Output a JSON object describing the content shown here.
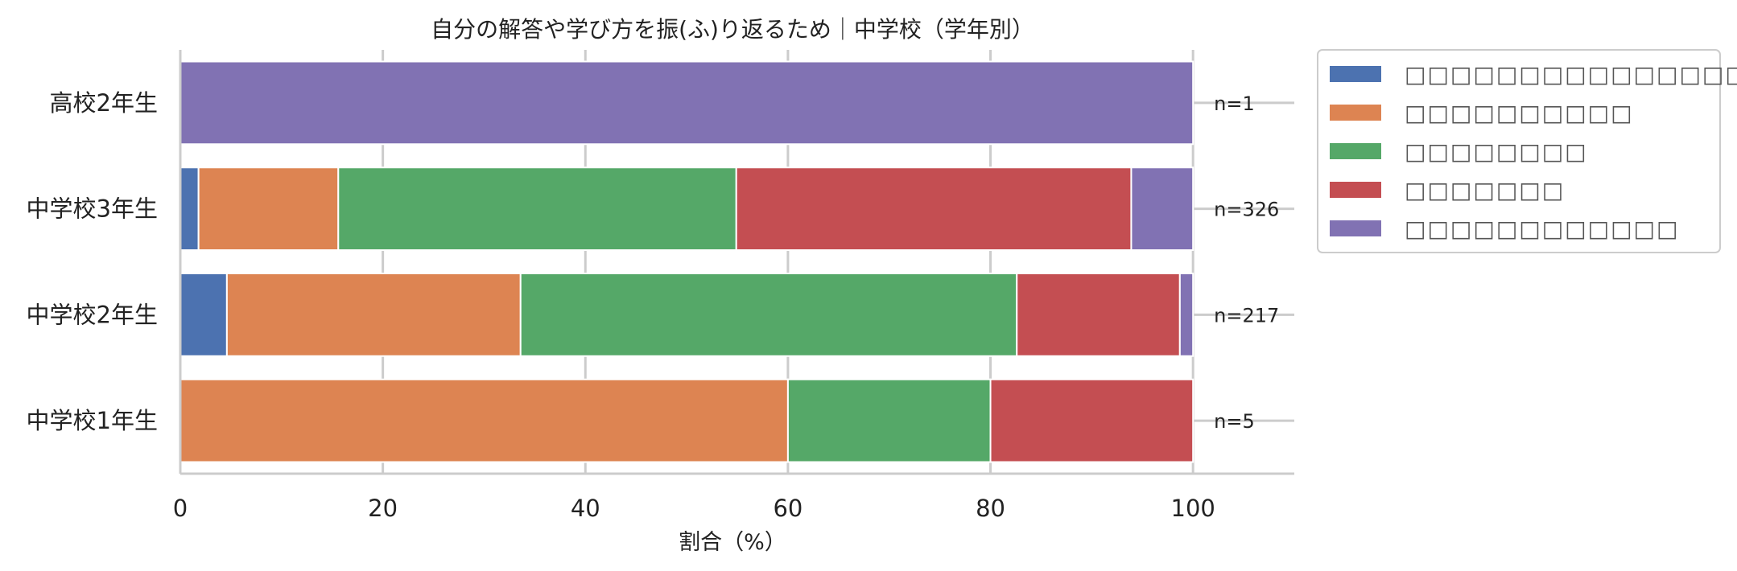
{
  "chart_data": {
    "type": "bar",
    "orientation": "horizontal",
    "stacked": true,
    "title": "自分の解答や学び方を振(ふ)り返るため｜中学校（学年別）",
    "xlabel": "割合（%）",
    "ylabel": "",
    "xlim": [
      0,
      110
    ],
    "xticks": [
      "0",
      "20",
      "40",
      "60",
      "80",
      "100"
    ],
    "grid": true,
    "legend_position": "outside-top-right",
    "categories": [
      "中学校1年生",
      "中学校2年生",
      "中学校3年生",
      "高校2年生"
    ],
    "counts": [
      "n=5",
      "n=217",
      "n=326",
      "n=1"
    ],
    "series": [
      {
        "name": "□□□□□□□□□□□□□□□□□",
        "color": "#4c72b0",
        "values": [
          0,
          4.6,
          1.8,
          0
        ]
      },
      {
        "name": "□□□□□□□□□□",
        "color": "#dd8452",
        "values": [
          60,
          29.0,
          13.8,
          0
        ]
      },
      {
        "name": "□□□□□□□□",
        "color": "#55a868",
        "values": [
          20,
          49.0,
          39.3,
          0
        ]
      },
      {
        "name": "□□□□□□□",
        "color": "#c44e52",
        "values": [
          20,
          16.1,
          39.0,
          0
        ]
      },
      {
        "name": "□□□□□□□□□□□□",
        "color": "#8172b3",
        "values": [
          0,
          1.3,
          6.1,
          100
        ]
      }
    ]
  }
}
